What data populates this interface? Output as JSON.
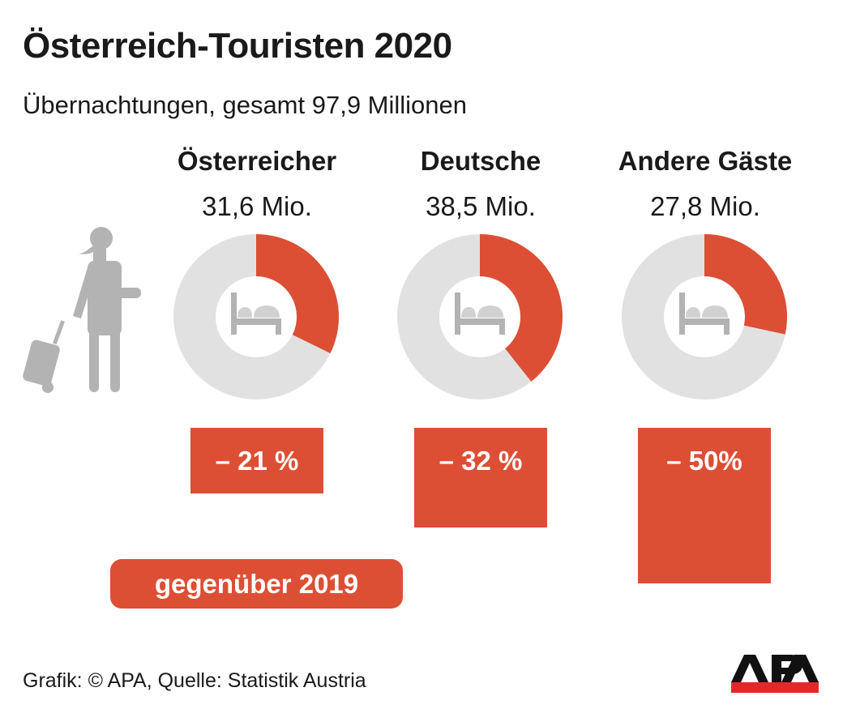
{
  "title": "Österreich-Touristen 2020",
  "subtitle": "Übernachtungen, gesamt 97,9 Millionen",
  "source": "Grafik: © APA, Quelle: Statistik Austria",
  "logo": "APA",
  "comparison_label": "gegenüber 2019",
  "colors": {
    "accent": "#dc4f35",
    "ring": "#e1e1e1",
    "icon": "#b3b3b3"
  },
  "icons": [
    "traveler-with-suitcase-icon",
    "bed-icon"
  ],
  "chart_data": {
    "type": "pie",
    "total": 97.9,
    "unit": "Mio.",
    "categories": [
      "Österreicher",
      "Deutsche",
      "Andere Gäste"
    ],
    "values": [
      31.6,
      38.5,
      27.8
    ],
    "value_labels": [
      "31,6 Mio.",
      "38,5 Mio.",
      "27,8 Mio."
    ],
    "change_vs_2019": [
      -21,
      -32,
      -50
    ],
    "change_labels": [
      "– 21 %",
      "– 32 %",
      "– 50%"
    ]
  }
}
